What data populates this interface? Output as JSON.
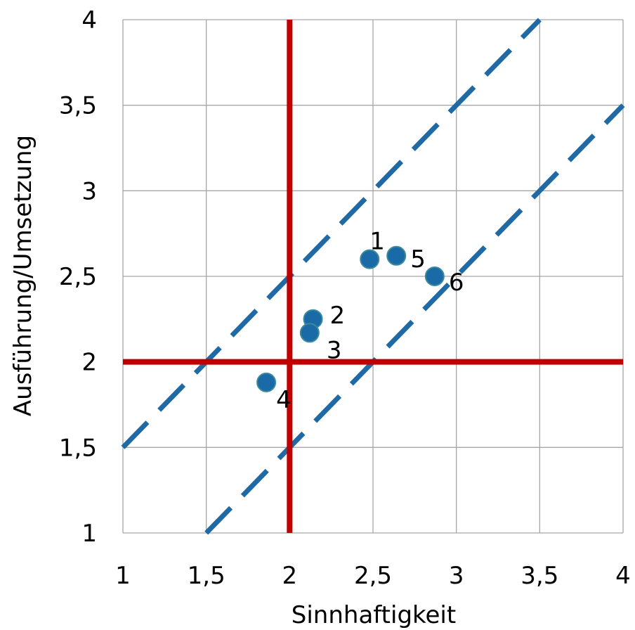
{
  "chart_data": {
    "type": "scatter",
    "xlabel": "Sinnhaftigkeit",
    "ylabel": "Ausführung/Umsetzung",
    "xlim": [
      1,
      4
    ],
    "ylim": [
      1,
      4
    ],
    "x_ticks": [
      1,
      1.5,
      2,
      2.5,
      3,
      3.5,
      4
    ],
    "y_ticks": [
      1,
      1.5,
      2,
      2.5,
      3,
      3.5,
      4
    ],
    "x_tick_labels": [
      "1",
      "1,5",
      "2",
      "2,5",
      "3",
      "3,5",
      "4"
    ],
    "y_tick_labels": [
      "1",
      "1,5",
      "2",
      "2,5",
      "3",
      "3,5",
      "4"
    ],
    "grid": true,
    "points": [
      {
        "label": "1",
        "x": 2.48,
        "y": 2.6
      },
      {
        "label": "2",
        "x": 2.14,
        "y": 2.25
      },
      {
        "label": "3",
        "x": 2.12,
        "y": 2.17
      },
      {
        "label": "4",
        "x": 1.86,
        "y": 1.88
      },
      {
        "label": "5",
        "x": 2.64,
        "y": 2.62
      },
      {
        "label": "6",
        "x": 2.87,
        "y": 2.5
      }
    ],
    "reference_lines": [
      {
        "orientation": "vertical",
        "x": 2,
        "color": "#c00000"
      },
      {
        "orientation": "horizontal",
        "y": 2,
        "color": "#c00000"
      }
    ],
    "diagonal_lines": [
      {
        "from": [
          1,
          1.5
        ],
        "to": [
          3.5,
          4
        ],
        "style": "dashed",
        "color": "#1f6aa5"
      },
      {
        "from": [
          1.5,
          1
        ],
        "to": [
          4,
          3.5
        ],
        "style": "dashed",
        "color": "#1f6aa5"
      }
    ],
    "colors": {
      "point": "#1a6aa8",
      "point_edge": "#3a8a9a",
      "reference": "#c00000",
      "diagonal": "#1f6aa5",
      "grid": "#a6a6a6"
    }
  }
}
